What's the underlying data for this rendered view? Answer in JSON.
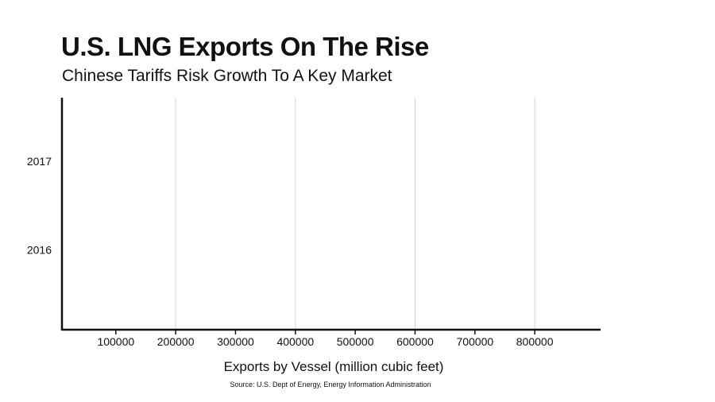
{
  "chart_data": {
    "type": "bar",
    "orientation": "horizontal",
    "title": "U.S. LNG Exports On The Rise",
    "subtitle": "Chinese Tariffs Risk Growth To A Key Market",
    "categories": [
      "2017",
      "2016"
    ],
    "series": [
      {
        "name": "Exports by Vessel",
        "values": [
          null,
          null
        ]
      }
    ],
    "xlabel": "Exports by Vessel (million cubic feet)",
    "xticks": [
      100000,
      200000,
      300000,
      400000,
      500000,
      600000,
      700000,
      800000
    ],
    "xlim": [
      10000,
      910000
    ],
    "gridlines": [
      200000,
      400000,
      600000,
      800000
    ],
    "grid": true,
    "legend": "none",
    "source": "Source: U.S. Dept of Energy, Energy Information Administration"
  }
}
